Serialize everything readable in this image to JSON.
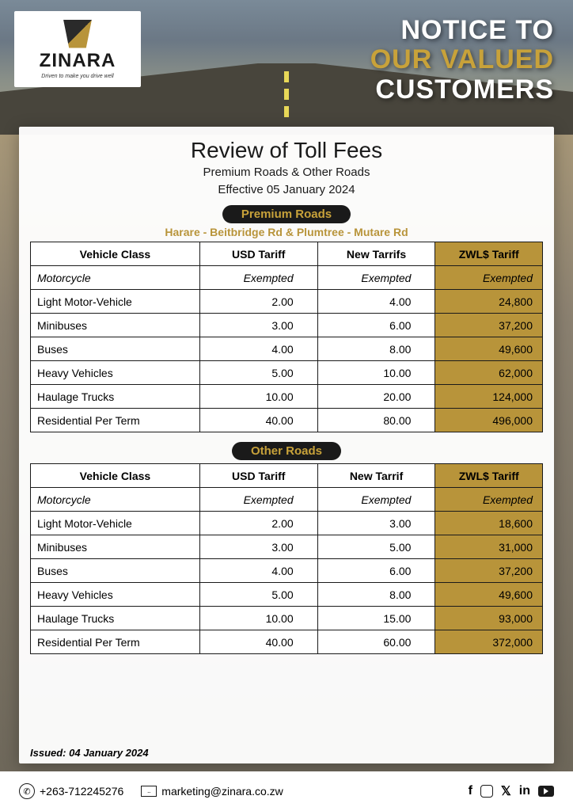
{
  "logo": {
    "name": "ZINARA",
    "tagline": "Driven to make you drive well"
  },
  "headline": {
    "l1": "NOTICE TO",
    "l2": "OUR VALUED",
    "l3": "CUSTOMERS"
  },
  "title": "Review of Toll Fees",
  "subtitle1": "Premium Roads & Other Roads",
  "subtitle2": "Effective 05 January 2024",
  "premium": {
    "pill": "Premium Roads",
    "roads": "Harare - Beitbridge Rd & Plumtree - Mutare Rd",
    "headers": [
      "Vehicle Class",
      "USD Tariff",
      "New Tarrifs",
      "ZWL$ Tariff"
    ],
    "rows": [
      {
        "vc": "Motorcycle",
        "usd": "Exempted",
        "new": "Exempted",
        "zwl": "Exempted",
        "exempt": true
      },
      {
        "vc": "Light Motor-Vehicle",
        "usd": "2.00",
        "new": "4.00",
        "zwl": "24,800"
      },
      {
        "vc": "Minibuses",
        "usd": "3.00",
        "new": "6.00",
        "zwl": "37,200"
      },
      {
        "vc": "Buses",
        "usd": "4.00",
        "new": "8.00",
        "zwl": "49,600"
      },
      {
        "vc": "Heavy Vehicles",
        "usd": "5.00",
        "new": "10.00",
        "zwl": "62,000"
      },
      {
        "vc": "Haulage Trucks",
        "usd": "10.00",
        "new": "20.00",
        "zwl": "124,000"
      },
      {
        "vc": "Residential Per Term",
        "usd": "40.00",
        "new": "80.00",
        "zwl": "496,000"
      }
    ]
  },
  "other": {
    "pill": "Other Roads",
    "headers": [
      "Vehicle Class",
      "USD Tariff",
      "New Tarrif",
      "ZWL$ Tariff"
    ],
    "rows": [
      {
        "vc": "Motorcycle",
        "usd": "Exempted",
        "new": "Exempted",
        "zwl": "Exempted",
        "exempt": true
      },
      {
        "vc": "Light Motor-Vehicle",
        "usd": "2.00",
        "new": "3.00",
        "zwl": "18,600"
      },
      {
        "vc": "Minibuses",
        "usd": "3.00",
        "new": "5.00",
        "zwl": "31,000"
      },
      {
        "vc": "Buses",
        "usd": "4.00",
        "new": "6.00",
        "zwl": "37,200"
      },
      {
        "vc": "Heavy Vehicles",
        "usd": "5.00",
        "new": "8.00",
        "zwl": "49,600"
      },
      {
        "vc": "Haulage Trucks",
        "usd": "10.00",
        "new": "15.00",
        "zwl": "93,000"
      },
      {
        "vc": "Residential Per Term",
        "usd": "40.00",
        "new": "60.00",
        "zwl": "372,000"
      }
    ]
  },
  "issued": "Issued: 04 January 2024",
  "footer": {
    "phone": "+263-712245276",
    "email": "marketing@zinara.co.zw"
  },
  "colors": {
    "gold": "#b8943a",
    "dark": "#1a1a1a",
    "bg_white": "#ffffff"
  }
}
